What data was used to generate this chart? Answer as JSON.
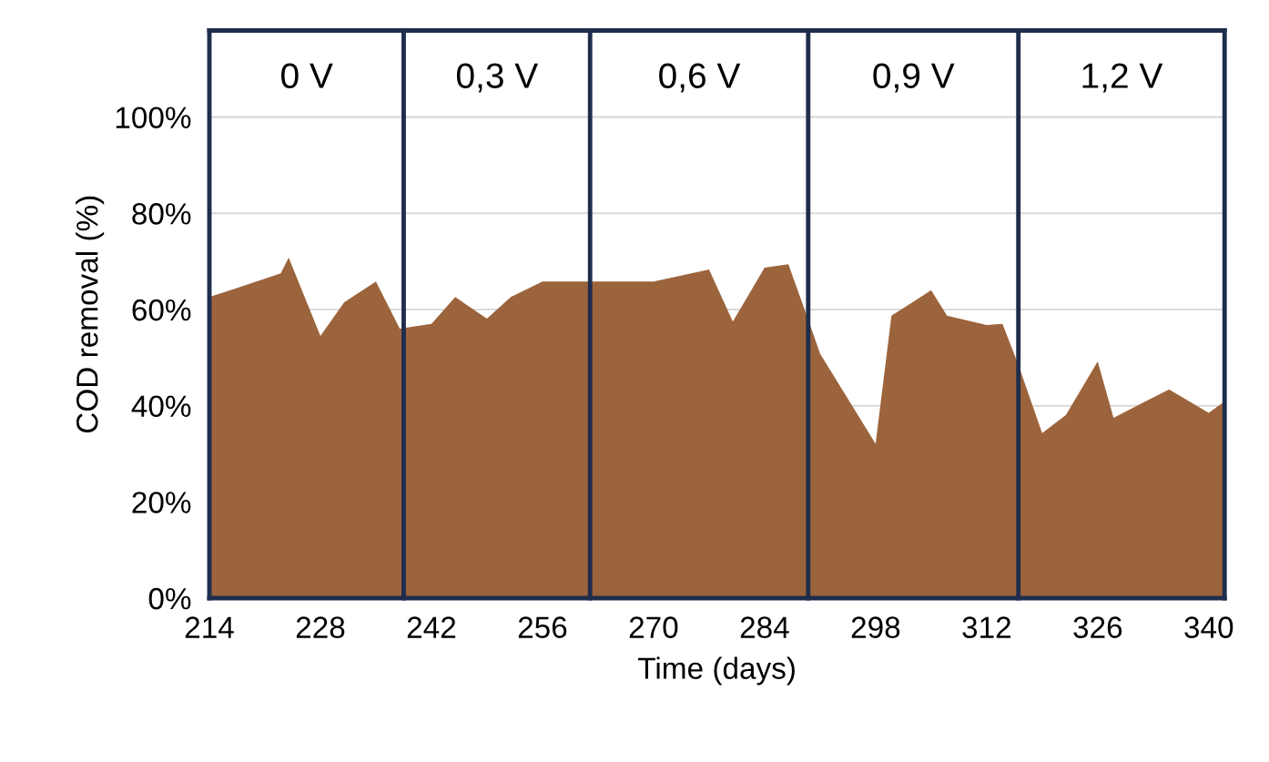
{
  "chart_data": {
    "type": "area",
    "xlabel": "Time (days)",
    "ylabel": "COD removal (%)",
    "x": [
      214,
      217,
      223,
      224,
      228,
      231,
      235,
      238,
      242,
      245,
      249,
      252,
      256,
      270,
      277,
      280,
      284,
      287,
      289.5,
      291,
      298,
      300,
      305,
      307,
      312,
      314,
      316,
      319,
      322,
      326,
      328,
      332,
      335,
      340,
      342
    ],
    "series": [
      {
        "color": "#9c643c",
        "values": [
          62.6,
          64.2,
          67.5,
          70.8,
          54.5,
          61.5,
          65.8,
          56.0,
          57.0,
          62.6,
          58.1,
          62.6,
          65.8,
          65.8,
          68.3,
          57.5,
          68.7,
          69.4,
          57.9,
          50.8,
          32.1,
          58.7,
          64.0,
          58.7,
          56.8,
          57.0,
          48.5,
          34.3,
          38.1,
          49.2,
          37.5,
          40.9,
          43.4,
          38.5,
          40.9
        ]
      }
    ],
    "xlim": [
      214,
      342
    ],
    "xticks": [
      214,
      228,
      242,
      256,
      270,
      284,
      298,
      312,
      326,
      340
    ],
    "ylim": [
      0,
      118
    ],
    "yticks": [
      {
        "value": 0,
        "label": "0%"
      },
      {
        "value": 20,
        "label": "20%"
      },
      {
        "value": 40,
        "label": "40%"
      },
      {
        "value": 60,
        "label": "60%"
      },
      {
        "value": 80,
        "label": "80%"
      },
      {
        "value": 100,
        "label": "100%"
      }
    ],
    "grid": "y",
    "ref_lines": [
      {
        "axis": "x",
        "value": 214,
        "color": "#1f2d4d"
      },
      {
        "axis": "x",
        "value": 238.5,
        "color": "#1f2d4d"
      },
      {
        "axis": "x",
        "value": 262,
        "color": "#1f2d4d"
      },
      {
        "axis": "x",
        "value": 289.5,
        "color": "#1f2d4d"
      },
      {
        "axis": "x",
        "value": 316,
        "color": "#1f2d4d"
      },
      {
        "axis": "x",
        "value": 342,
        "color": "#1f2d4d"
      },
      {
        "axis": "y",
        "value": 118,
        "color": "#1f2d4d"
      }
    ],
    "annotations": [
      "0 V",
      "0,3 V",
      "0,6 V",
      "0,9 V",
      "1,2 V"
    ]
  }
}
